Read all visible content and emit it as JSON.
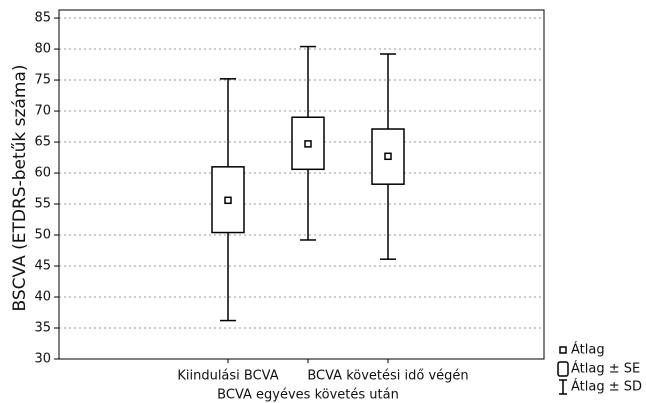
{
  "chart_data": {
    "type": "box",
    "y_label": "BSCVA (ETDRS-betűk száma)",
    "categories": [
      "Kiindulási BCVA",
      "BCVA egyéves követés után",
      "BCVA követési idő végén"
    ],
    "mean": [
      55.6,
      64.7,
      62.7
    ],
    "box_low": [
      50.4,
      60.6,
      58.2
    ],
    "box_high": [
      61.0,
      69.0,
      67.1
    ],
    "whisker_low": [
      36.2,
      49.2,
      46.1
    ],
    "whisker_high": [
      75.2,
      80.4,
      79.2
    ],
    "ylim": [
      30,
      86.3
    ],
    "yticks": [
      30,
      35,
      40,
      45,
      50,
      55,
      60,
      65,
      70,
      75,
      80,
      85
    ],
    "grid": true,
    "color": "#000000",
    "legend": [
      "Átlag",
      "Átlag ± SE",
      "Átlag ± SD"
    ],
    "legend_position": "lower right"
  }
}
